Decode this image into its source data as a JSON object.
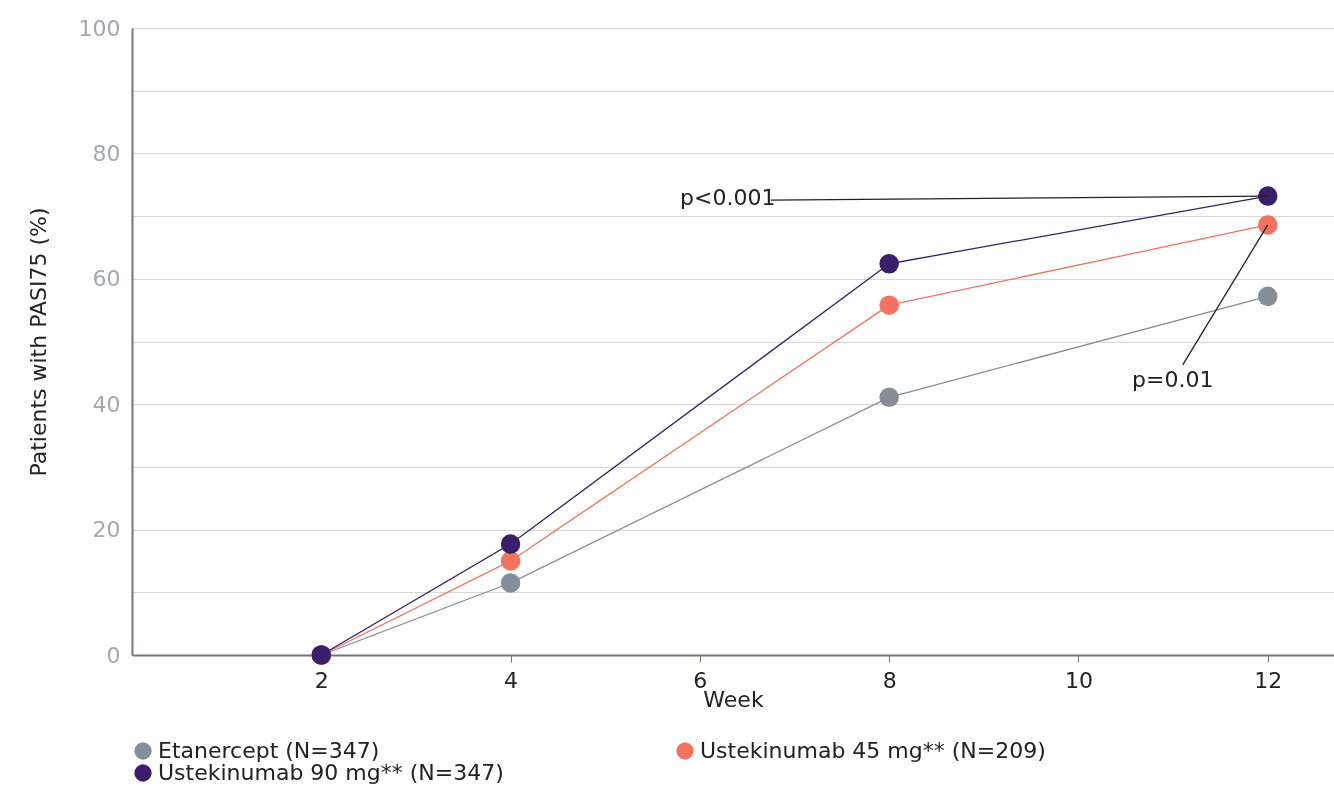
{
  "chart_data": {
    "type": "line",
    "xlabel": "Week",
    "ylabel": "Patients with PASI75 (%)",
    "x": [
      2,
      4,
      8,
      12
    ],
    "series": [
      {
        "name": "Etanercept (N=347)",
        "color": "#868e9a",
        "values": [
          0,
          11.5,
          41.1,
          57.2
        ]
      },
      {
        "name": "Ustekinumab 45 mg** (N=209)",
        "color": "#f47260",
        "values": [
          0,
          15.0,
          55.8,
          68.6
        ]
      },
      {
        "name": "Ustekinumab 90 mg** (N=347)",
        "color": "#3a1e6b",
        "values": [
          0,
          17.7,
          62.4,
          73.2
        ]
      }
    ],
    "xlim": [
      0,
      12.7
    ],
    "xticks": [
      2,
      4,
      6,
      8,
      10,
      12
    ],
    "ylim": [
      0,
      100
    ],
    "yticks": [
      0,
      {
        "value": 10,
        "label": null
      },
      20,
      {
        "value": 30,
        "label": null
      },
      40,
      {
        "value": 50,
        "label": null
      },
      60,
      {
        "value": 70,
        "label": null
      },
      80,
      {
        "value": 90,
        "label": null
      },
      100
    ],
    "grid": "y",
    "legend": "bottom",
    "marker": "circle",
    "line_style": "solid",
    "annotations": [
      {
        "text": "p<0.001",
        "x": 12,
        "y": 73.2
      },
      {
        "text": "p=0.01",
        "x": 12,
        "y": 68.6
      }
    ]
  }
}
